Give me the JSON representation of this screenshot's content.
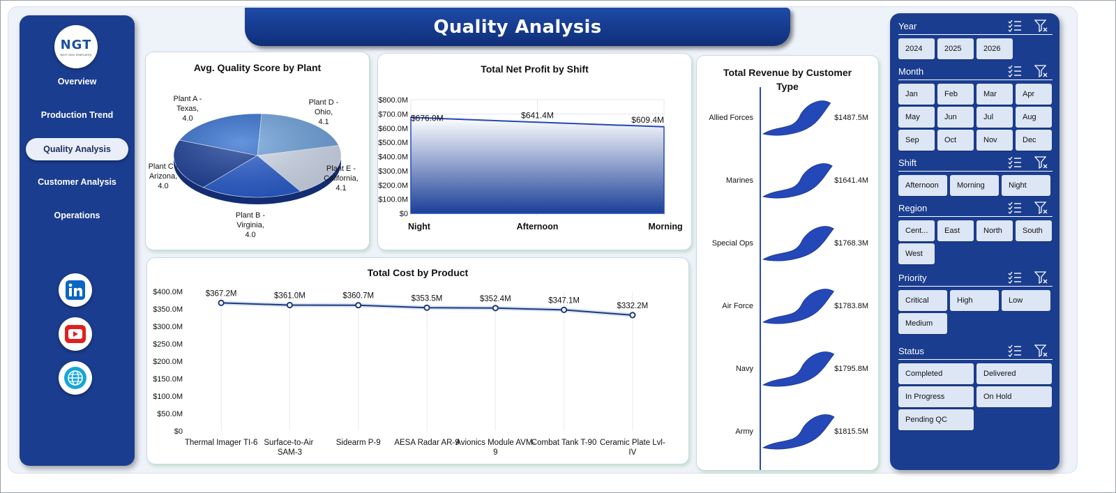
{
  "title": "Quality Analysis",
  "logo": {
    "text": "NGT",
    "subtext": "NEXT GEN TEMPLATES"
  },
  "nav": [
    {
      "label": "Overview",
      "active": false
    },
    {
      "label": "Production Trend",
      "active": false
    },
    {
      "label": "Quality Analysis",
      "active": true
    },
    {
      "label": "Customer Analysis",
      "active": false
    },
    {
      "label": "Operations",
      "active": false
    }
  ],
  "social": [
    "linkedin-icon",
    "youtube-icon",
    "globe-icon"
  ],
  "colors": {
    "navy": "#1a3d8f",
    "series": "#2548b8",
    "accent": "#1e4aa8"
  },
  "chart_data": [
    {
      "id": "quality",
      "type": "pie",
      "title": "Avg. Quality Score by Plant",
      "labels": [
        "Plant D - Ohio, 4.1",
        "Plant E - California, 4.1",
        "Plant B - Virginia, 4.0",
        "Plant C - Arizona, 4.0",
        "Plant A - Texas, 4.0"
      ],
      "slices": [
        {
          "name": "Plant D - Ohio",
          "value": 4.1,
          "color": "#6fa3dd"
        },
        {
          "name": "Plant E - California",
          "value": 4.1,
          "color": "#d4def0"
        },
        {
          "name": "Plant B - Virginia",
          "value": 4.0,
          "color": "#2a5ed0"
        },
        {
          "name": "Plant C - Arizona",
          "value": 4.0,
          "color": "#1b3f98"
        },
        {
          "name": "Plant A - Texas",
          "value": 4.0,
          "color": "#3370d0"
        }
      ]
    },
    {
      "id": "profit",
      "type": "area",
      "title": "Total Net Profit by Shift",
      "categories": [
        "Night",
        "Afternoon",
        "Morning"
      ],
      "values": [
        676.0,
        641.4,
        609.4
      ],
      "data_labels": [
        "$676.0M",
        "$641.4M",
        "$609.4M"
      ],
      "ylim": [
        0,
        800
      ],
      "yticks": [
        "$0",
        "$100.0M",
        "$200.0M",
        "$300.0M",
        "$400.0M",
        "$500.0M",
        "$600.0M",
        "$700.0M",
        "$800.0M"
      ]
    },
    {
      "id": "cost",
      "type": "line",
      "title": "Total Cost by Product",
      "categories": [
        "Thermal Imager TI-6",
        "Surface-to-Air SAM-3",
        "Sidearm P-9",
        "AESA Radar AR-9",
        "Avionics Module AVM-9",
        "Combat Tank T-90",
        "Ceramic Plate Lvl-IV"
      ],
      "values": [
        367.2,
        361.0,
        360.7,
        353.5,
        352.4,
        347.1,
        332.2
      ],
      "data_labels": [
        "$367.2M",
        "$361.0M",
        "$360.7M",
        "$353.5M",
        "$352.4M",
        "$347.1M",
        "$332.2M"
      ],
      "ylim": [
        0,
        400
      ],
      "yticks": [
        "$0",
        "$50.0M",
        "$100.0M",
        "$150.0M",
        "$200.0M",
        "$250.0M",
        "$300.0M",
        "$350.0M",
        "$400.0M"
      ]
    },
    {
      "id": "revenue",
      "type": "bar",
      "title": "Total Revenue by Customer Type",
      "categories": [
        "Allied Forces",
        "Marines",
        "Special Ops",
        "Air Force",
        "Navy",
        "Army"
      ],
      "values": [
        1487.5,
        1641.4,
        1768.3,
        1783.8,
        1795.8,
        1815.5
      ],
      "data_labels": [
        "$1487.5M",
        "$1641.4M",
        "$1768.3M",
        "$1783.8M",
        "$1795.8M",
        "$1815.5M"
      ]
    }
  ],
  "slicers": [
    {
      "name": "Year",
      "items": [
        "2024",
        "2025",
        "2026"
      ],
      "cols": 4
    },
    {
      "name": "Month",
      "items": [
        "Jan",
        "Feb",
        "Mar",
        "Apr",
        "May",
        "Jun",
        "Jul",
        "Aug",
        "Sep",
        "Oct",
        "Nov",
        "Dec"
      ],
      "cols": 4
    },
    {
      "name": "Shift",
      "items": [
        "Afternoon",
        "Morning",
        "Night"
      ],
      "cols": 3
    },
    {
      "name": "Region",
      "items": [
        "Cent...",
        "East",
        "North",
        "South",
        "West"
      ],
      "cols": 4
    },
    {
      "name": "Priority",
      "items": [
        "Critical",
        "High",
        "Low",
        "Medium"
      ],
      "cols": 3
    },
    {
      "name": "Status",
      "items": [
        "Completed",
        "Delivered",
        "In Progress",
        "On Hold",
        "Pending QC"
      ],
      "cols": 2
    }
  ]
}
